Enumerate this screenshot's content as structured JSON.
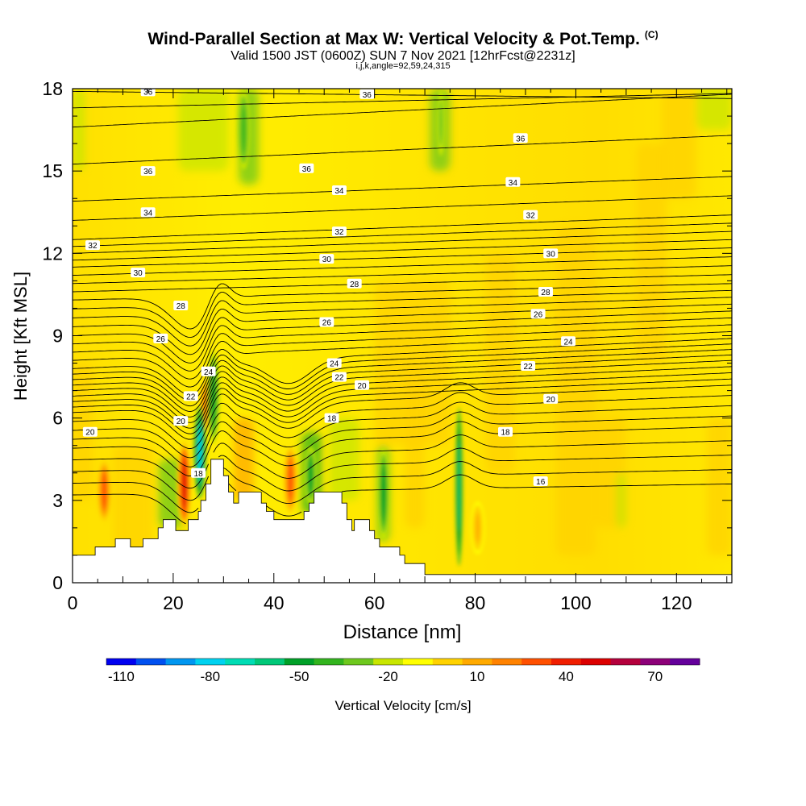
{
  "header": {
    "title": "Wind-Parallel Section at Max W: Vertical Velocity & Pot.Temp.",
    "copyright": "(C)",
    "subtitle": "Valid 1500 JST (0600Z) SUN 7 Nov 2021 [12hrFcst@2231z]",
    "params": "i,j,k,angle=92,59,24,315"
  },
  "chart_data": {
    "type": "heatmap",
    "xlabel": "Distance [nm]",
    "ylabel": "Height [Kft MSL]",
    "xlim": [
      0,
      131
    ],
    "ylim": [
      0,
      18
    ],
    "x_ticks": [
      0,
      20,
      40,
      60,
      80,
      100,
      120
    ],
    "y_ticks": [
      0,
      3,
      6,
      9,
      12,
      15,
      18
    ],
    "field": "Vertical Velocity [cm/s]",
    "colorbar": {
      "label": "Vertical Velocity [cm/s]",
      "tick_labels": [
        "-110",
        "-80",
        "-50",
        "-20",
        "10",
        "40",
        "70"
      ],
      "colors": [
        "#0000f0",
        "#0050f0",
        "#0096f0",
        "#00d2f0",
        "#00dcb4",
        "#00c878",
        "#00a028",
        "#32b41e",
        "#6ec81e",
        "#c8e600",
        "#ffff00",
        "#ffd200",
        "#ffaa00",
        "#ff8200",
        "#ff5000",
        "#f01e00",
        "#dc0000",
        "#b4003c",
        "#8c0078",
        "#64009b"
      ]
    },
    "contour_field": "Potential Temperature",
    "contours": [
      {
        "level": 36,
        "labels": [
          {
            "x": 15,
            "y": 17.9
          },
          {
            "x": 58.5,
            "y": 17.8
          },
          {
            "x": 15,
            "y": 15.0
          },
          {
            "x": 46.5,
            "y": 15.1
          },
          {
            "x": 89,
            "y": 16.2
          }
        ]
      },
      {
        "level": 34,
        "labels": [
          {
            "x": 15,
            "y": 13.5
          },
          {
            "x": 53,
            "y": 14.3
          },
          {
            "x": 87.5,
            "y": 14.6
          }
        ]
      },
      {
        "level": 32,
        "labels": [
          {
            "x": 4,
            "y": 12.3
          },
          {
            "x": 53,
            "y": 12.8
          },
          {
            "x": 91,
            "y": 13.4
          }
        ]
      },
      {
        "level": 30,
        "labels": [
          {
            "x": 13,
            "y": 11.3
          },
          {
            "x": 50.5,
            "y": 11.8
          },
          {
            "x": 95,
            "y": 12.0
          }
        ]
      },
      {
        "level": 28,
        "labels": [
          {
            "x": 21.5,
            "y": 10.1
          },
          {
            "x": 56,
            "y": 10.9
          },
          {
            "x": 94,
            "y": 10.6
          }
        ]
      },
      {
        "level": 26,
        "labels": [
          {
            "x": 17.5,
            "y": 8.9
          },
          {
            "x": 50.5,
            "y": 9.5
          },
          {
            "x": 92.5,
            "y": 9.8
          }
        ]
      },
      {
        "level": 24,
        "labels": [
          {
            "x": 27,
            "y": 7.7
          },
          {
            "x": 52,
            "y": 8.0
          },
          {
            "x": 98.5,
            "y": 8.8
          }
        ]
      },
      {
        "level": 22,
        "labels": [
          {
            "x": 23.5,
            "y": 6.8
          },
          {
            "x": 53,
            "y": 7.5
          },
          {
            "x": 90.5,
            "y": 7.9
          }
        ]
      },
      {
        "level": 20,
        "labels": [
          {
            "x": 3.5,
            "y": 5.5
          },
          {
            "x": 21.5,
            "y": 5.9
          },
          {
            "x": 57.5,
            "y": 7.2
          },
          {
            "x": 95,
            "y": 6.7
          }
        ]
      },
      {
        "level": 18,
        "labels": [
          {
            "x": 25,
            "y": 4.0
          },
          {
            "x": 51.5,
            "y": 6.0
          },
          {
            "x": 86,
            "y": 5.5
          }
        ]
      },
      {
        "level": 16,
        "labels": [
          {
            "x": 93,
            "y": 3.7
          }
        ]
      }
    ],
    "terrain": [
      [
        0,
        1.0
      ],
      [
        4.5,
        1.0
      ],
      [
        4.5,
        1.3
      ],
      [
        8.5,
        1.3
      ],
      [
        8.5,
        1.6
      ],
      [
        11.5,
        1.6
      ],
      [
        11.5,
        1.3
      ],
      [
        14,
        1.3
      ],
      [
        14,
        1.6
      ],
      [
        17,
        1.6
      ],
      [
        17,
        2.0
      ],
      [
        18,
        2.0
      ],
      [
        18,
        2.3
      ],
      [
        20.5,
        2.3
      ],
      [
        20.5,
        1.9
      ],
      [
        23,
        1.9
      ],
      [
        23,
        2.3
      ],
      [
        25,
        2.3
      ],
      [
        25,
        2.6
      ],
      [
        25.5,
        2.6
      ],
      [
        25.5,
        3.0
      ],
      [
        26.5,
        3.0
      ],
      [
        26.5,
        3.6
      ],
      [
        27.5,
        3.6
      ],
      [
        27.5,
        4.5
      ],
      [
        30,
        4.5
      ],
      [
        30,
        3.9
      ],
      [
        31,
        3.9
      ],
      [
        31,
        3.3
      ],
      [
        32,
        3.3
      ],
      [
        32,
        2.9
      ],
      [
        33,
        2.9
      ],
      [
        33,
        3.3
      ],
      [
        37.5,
        3.3
      ],
      [
        37.5,
        2.9
      ],
      [
        38.5,
        2.9
      ],
      [
        38.5,
        2.6
      ],
      [
        40,
        2.6
      ],
      [
        40,
        2.3
      ],
      [
        46,
        2.3
      ],
      [
        46,
        2.6
      ],
      [
        47,
        2.6
      ],
      [
        47,
        2.9
      ],
      [
        48,
        2.9
      ],
      [
        48,
        3.3
      ],
      [
        53.5,
        3.3
      ],
      [
        53.5,
        2.9
      ],
      [
        54.5,
        2.9
      ],
      [
        54.5,
        2.3
      ],
      [
        55.5,
        2.3
      ],
      [
        55.5,
        1.9
      ],
      [
        56,
        1.9
      ],
      [
        56,
        2.3
      ],
      [
        59,
        2.3
      ],
      [
        59,
        1.9
      ],
      [
        60,
        1.9
      ],
      [
        60,
        1.6
      ],
      [
        61,
        1.6
      ],
      [
        61,
        1.3
      ],
      [
        65,
        1.3
      ],
      [
        65,
        1.0
      ],
      [
        66,
        1.0
      ],
      [
        66,
        0.7
      ],
      [
        70,
        0.7
      ],
      [
        70,
        0.3
      ],
      [
        131,
        0.3
      ],
      [
        131,
        0
      ],
      [
        0,
        0
      ]
    ],
    "updraft_cores": [
      {
        "x": 6.3,
        "y_range": [
          2.2,
          4.5
        ],
        "max_cm_s": 60
      },
      {
        "x": 22.2,
        "y_range": [
          2.0,
          5.2
        ],
        "max_cm_s": 80
      },
      {
        "x": 26.8,
        "y_range": [
          5.5,
          7.5
        ],
        "max_cm_s": 60
      },
      {
        "x": 43.3,
        "y_range": [
          2.5,
          5.0
        ],
        "max_cm_s": 50
      },
      {
        "x": 80.5,
        "y_range": [
          1.0,
          3.0
        ],
        "max_cm_s": 30
      }
    ],
    "downdraft_cores": [
      {
        "x": 25.3,
        "y_range": [
          3.0,
          6.5
        ],
        "min_cm_s": -80
      },
      {
        "x": 28.0,
        "y_range": [
          5.0,
          8.5
        ],
        "min_cm_s": -40
      },
      {
        "x": 47.3,
        "y_range": [
          2.8,
          5.0
        ],
        "min_cm_s": -40
      },
      {
        "x": 61.8,
        "y_range": [
          1.5,
          5.0
        ],
        "min_cm_s": -40
      },
      {
        "x": 76.8,
        "y_range": [
          0.5,
          6.5
        ],
        "min_cm_s": -60
      },
      {
        "x": 34.0,
        "y_range": [
          15.0,
          18.0
        ],
        "min_cm_s": -30
      },
      {
        "x": 73.2,
        "y_range": [
          15.5,
          18.0
        ],
        "min_cm_s": -20
      }
    ]
  }
}
